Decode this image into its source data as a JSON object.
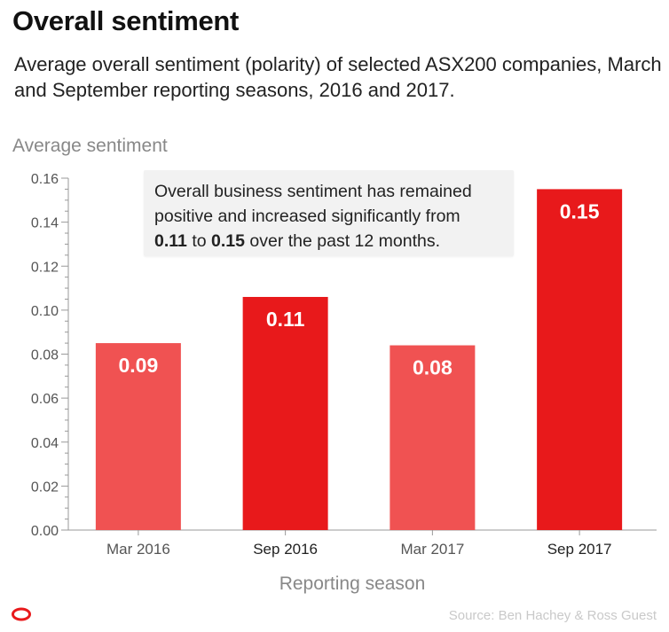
{
  "header": {
    "title": "Overall sentiment",
    "subtitle": "Average overall sentiment (polarity) of selected ASX200 companies, March and September reporting seasons, 2016 and 2017."
  },
  "chart_data": {
    "type": "bar",
    "categories": [
      "Mar 2016",
      "Sep 2016",
      "Mar 2017",
      "Sep 2017"
    ],
    "values": [
      0.085,
      0.106,
      0.084,
      0.155
    ],
    "data_labels": [
      "0.09",
      "0.11",
      "0.08",
      "0.15"
    ],
    "category_emphasis": [
      false,
      true,
      false,
      true
    ],
    "ylabel": "Average sentiment",
    "xlabel": "Reporting season",
    "ylim": [
      0,
      0.16
    ],
    "yticks": [
      "0.00",
      "0.02",
      "0.04",
      "0.06",
      "0.08",
      "0.10",
      "0.12",
      "0.14",
      "0.16"
    ],
    "grid": false,
    "colors": {
      "march": "#f05252",
      "september": "#e8191b",
      "axis": "#999999"
    }
  },
  "annotation": {
    "line1": "Overall business sentiment has remained",
    "line2": "positive and increased significantly from",
    "from_value": "0.11",
    "connector": "to",
    "to_value": "0.15",
    "line3_end": "over the past 12 months."
  },
  "footer": {
    "logo": "the-conversation-logo-icon",
    "source": "Source: Ben Hachey & Ross Guest",
    "logo_color": "#e8191b"
  }
}
